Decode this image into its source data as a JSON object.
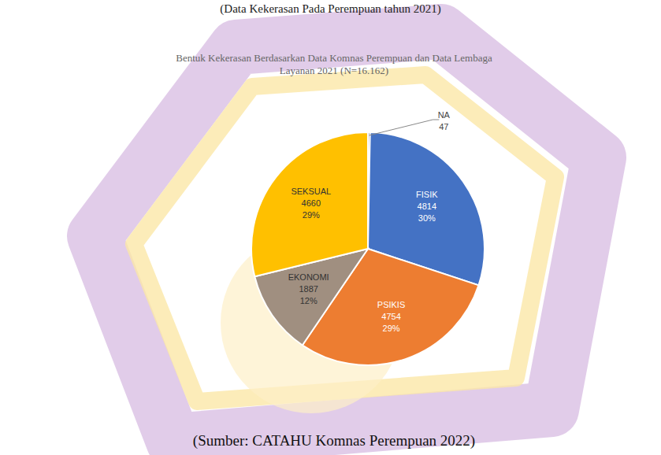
{
  "chart_data": {
    "type": "pie",
    "caption": "(Data Kekerasan Pada Perempuan tahun 2021)",
    "title": "Bentuk Kekerasan Berdasarkan Data Komnas Perempuan dan Data Lembaga Layanan 2021 (N=16.162)",
    "source": "(Sumber: CATAHU Komnas Perempuan 2022)",
    "categories": [
      "NA",
      "FISIK",
      "PSIKIS",
      "EKONOMI",
      "SEKSUAL"
    ],
    "values": [
      47,
      4814,
      4754,
      1887,
      4660
    ],
    "percent_labels": [
      null,
      "30%",
      "29%",
      "12%",
      "29%"
    ],
    "colors": [
      "#5b5b8f",
      "#4472c4",
      "#ed7d31",
      "#a08f80",
      "#ffc000"
    ],
    "data_labels": true
  }
}
